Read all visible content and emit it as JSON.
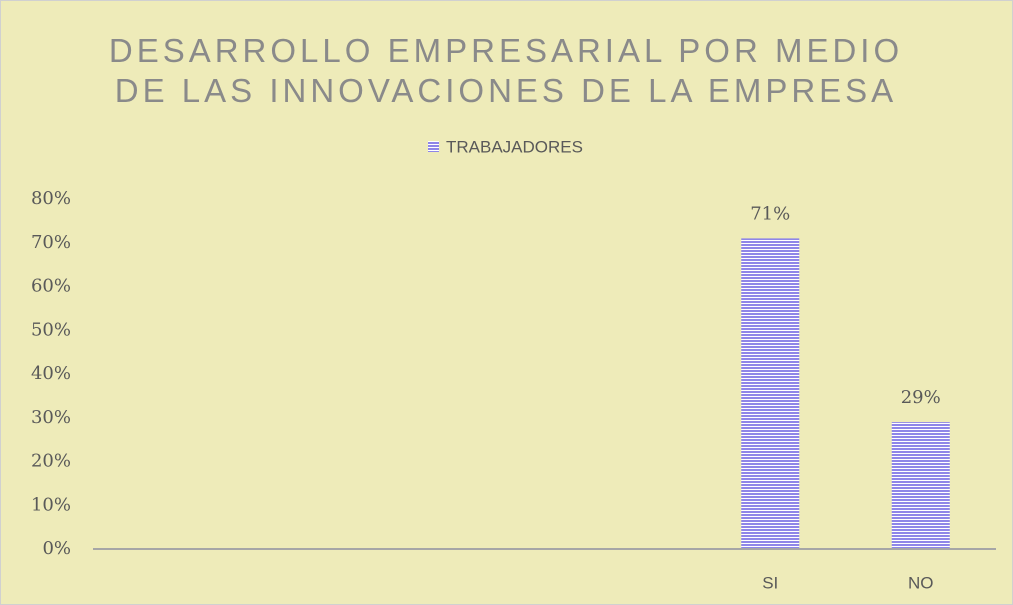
{
  "chart_data": {
    "type": "bar",
    "title": "DESARROLLO EMPRESARIAL POR MEDIO DE LAS INNOVACIONES DE LA EMPRESA",
    "categories": [
      null,
      null,
      null,
      null,
      "SI",
      "NO"
    ],
    "series": [
      {
        "name": "TRABAJADORES",
        "color": "#8f86e8",
        "values": [
          null,
          null,
          null,
          null,
          71,
          29
        ],
        "value_labels": [
          null,
          null,
          null,
          null,
          "71%",
          "29%"
        ]
      }
    ],
    "ylim": [
      0,
      80
    ],
    "yticks": [
      {
        "value": 0,
        "label": "0%"
      },
      {
        "value": 10,
        "label": "10%"
      },
      {
        "value": 20,
        "label": "20%"
      },
      {
        "value": 30,
        "label": "30%"
      },
      {
        "value": 40,
        "label": "40%"
      },
      {
        "value": 50,
        "label": "50%"
      },
      {
        "value": 60,
        "label": "60%"
      },
      {
        "value": 70,
        "label": "70%"
      },
      {
        "value": 80,
        "label": "80%"
      }
    ],
    "grid": false,
    "legend": "top"
  }
}
